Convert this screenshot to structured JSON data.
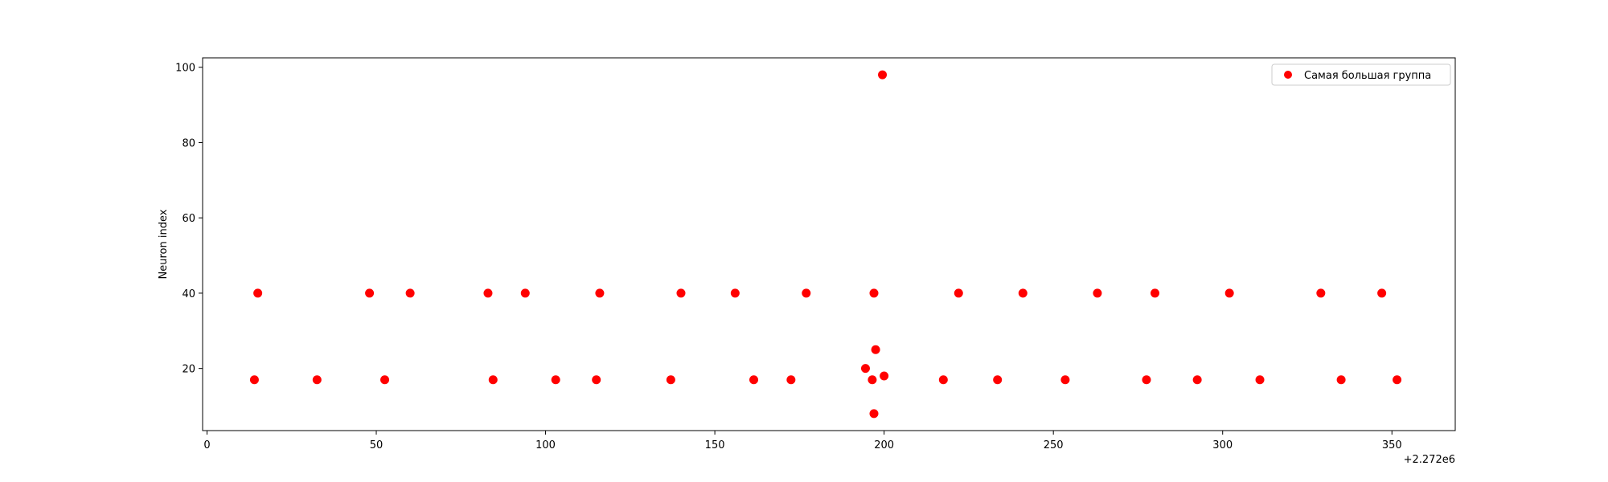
{
  "chart_data": {
    "type": "scatter",
    "title": "",
    "xlabel": "",
    "ylabel": "Neuron index",
    "x_offset_label": "+2.272e6",
    "xlim": [
      -1.3,
      368.7
    ],
    "ylim": [
      3.5,
      102.5
    ],
    "xticks": [
      "0",
      "50",
      "100",
      "150",
      "200",
      "250",
      "300",
      "350"
    ],
    "yticks": [
      "20",
      "40",
      "60",
      "80",
      "100"
    ],
    "grid": false,
    "legend_position": "top-right",
    "marker_color": "#ff0000",
    "series": [
      {
        "name": "Самая большая группа",
        "color": "#ff0000",
        "x": [
          15,
          48,
          60,
          83,
          94,
          116,
          140,
          156,
          177,
          197,
          222,
          241,
          263,
          280,
          302,
          329,
          347,
          14,
          32.5,
          52.5,
          84.5,
          103,
          115,
          137,
          161.5,
          172.5,
          196.5,
          217.5,
          233.5,
          253.5,
          277.5,
          292.5,
          311,
          335,
          351.5,
          194.5,
          197.5,
          200,
          197,
          199.5
        ],
        "y": [
          40,
          40,
          40,
          40,
          40,
          40,
          40,
          40,
          40,
          40,
          40,
          40,
          40,
          40,
          40,
          40,
          40,
          17,
          17,
          17,
          17,
          17,
          17,
          17,
          17,
          17,
          17,
          17,
          17,
          17,
          17,
          17,
          17,
          17,
          17,
          20,
          25,
          18,
          8,
          98
        ]
      }
    ]
  }
}
